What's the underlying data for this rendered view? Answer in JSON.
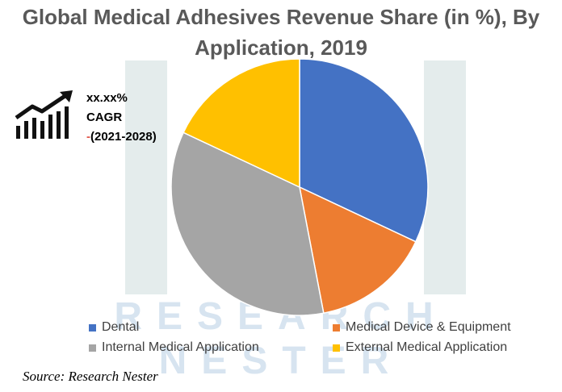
{
  "title": "Global Medical Adhesives Revenue Share (in %), By Application, 2019",
  "cagr": {
    "value": "xx.xx%",
    "label": "CAGR",
    "dash": "-",
    "period": "(2021-2028)",
    "icon": "growth-bars-arrow-icon"
  },
  "watermark": {
    "line1": "RESEARCH",
    "line2": "NESTER"
  },
  "source": "Source: Research Nester",
  "chart_data": {
    "type": "pie",
    "title": "Global Medical Adhesives Revenue Share (in %), By Application, 2019",
    "start_angle_deg": 0,
    "direction": "clockwise",
    "legend_position": "bottom",
    "slices": [
      {
        "label": "Dental",
        "value": 32,
        "color": "#4472c4"
      },
      {
        "label": "Medical Device & Equipment",
        "value": 15,
        "color": "#ed7d31"
      },
      {
        "label": "Internal Medical Application",
        "value": 35,
        "color": "#a5a5a5"
      },
      {
        "label": "External Medical Application",
        "value": 18,
        "color": "#ffc000"
      }
    ]
  }
}
